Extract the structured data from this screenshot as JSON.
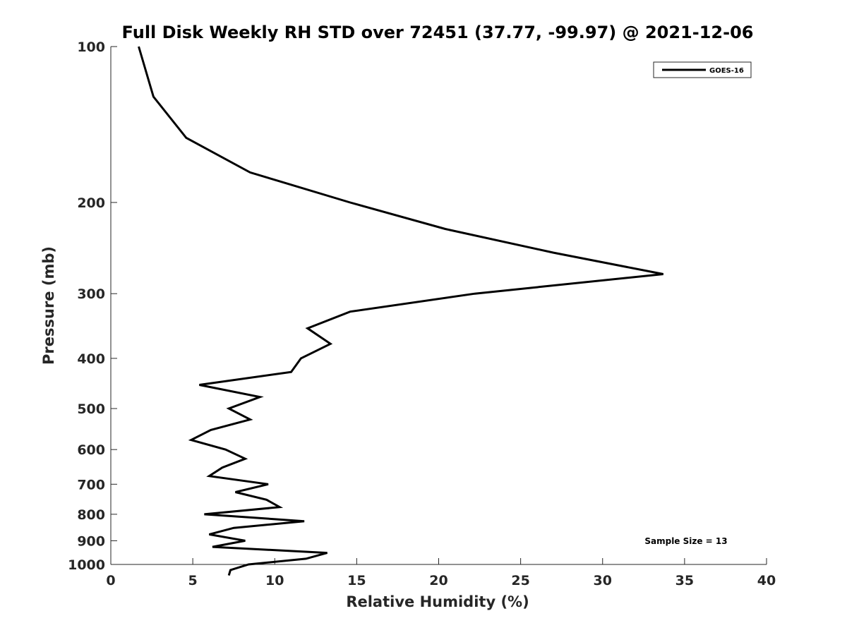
{
  "chart_data": {
    "type": "line",
    "title": "Full Disk Weekly RH STD over 72451 (37.77, -99.97) @ 2021-12-06",
    "xlabel": "Relative Humidity (%)",
    "ylabel": "Pressure (mb)",
    "xlim": [
      0,
      40
    ],
    "ylim": [
      100,
      1000
    ],
    "yscale": "log",
    "yreversed": true,
    "x_ticks": [
      0,
      5,
      10,
      15,
      20,
      25,
      30,
      35,
      40
    ],
    "y_ticks": [
      100,
      200,
      300,
      400,
      500,
      600,
      700,
      800,
      900,
      1000
    ],
    "grid": false,
    "legend_position": "top-right",
    "series": [
      {
        "name": "GOES-16",
        "color": "#000000",
        "points": [
          [
            1.7,
            100
          ],
          [
            2.6,
            125
          ],
          [
            4.6,
            150
          ],
          [
            8.5,
            175
          ],
          [
            14.6,
            200
          ],
          [
            20.4,
            225
          ],
          [
            27.0,
            250
          ],
          [
            33.7,
            275
          ],
          [
            22.2,
            300
          ],
          [
            14.6,
            325
          ],
          [
            12.0,
            350
          ],
          [
            13.4,
            375
          ],
          [
            11.6,
            400
          ],
          [
            11.0,
            425
          ],
          [
            5.4,
            450
          ],
          [
            9.1,
            475
          ],
          [
            7.2,
            500
          ],
          [
            8.5,
            525
          ],
          [
            6.1,
            550
          ],
          [
            4.9,
            575
          ],
          [
            7.0,
            600
          ],
          [
            8.2,
            625
          ],
          [
            6.8,
            650
          ],
          [
            6.0,
            675
          ],
          [
            9.6,
            700
          ],
          [
            7.6,
            725
          ],
          [
            9.5,
            750
          ],
          [
            10.3,
            775
          ],
          [
            5.7,
            800
          ],
          [
            11.8,
            825
          ],
          [
            7.5,
            850
          ],
          [
            6.0,
            875
          ],
          [
            8.2,
            900
          ],
          [
            6.2,
            925
          ],
          [
            13.2,
            950
          ],
          [
            11.9,
            975
          ],
          [
            8.4,
            1000
          ],
          [
            7.3,
            1025
          ],
          [
            7.2,
            1050
          ]
        ]
      }
    ],
    "annotation": "Sample Size = 13"
  }
}
